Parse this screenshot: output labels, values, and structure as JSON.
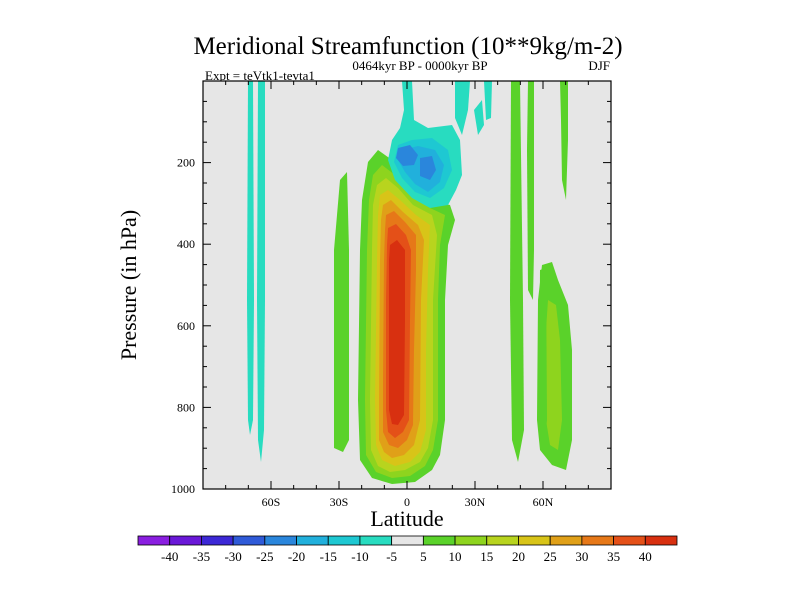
{
  "chart_data": {
    "type": "contour",
    "title": "Meridional Streamfunction (10**9kg/m-2)",
    "subtitle_left": "Expt = teVtk1-tevta1",
    "subtitle_center": "0464kyr BP - 0000kyr BP",
    "subtitle_right": "DJF",
    "xlabel": "Latitude",
    "ylabel": "Pressure (in hPa)",
    "xlim": [
      -90,
      90
    ],
    "ylim": [
      1000,
      0
    ],
    "x_ticks": [
      {
        "value": -60,
        "label": "60S"
      },
      {
        "value": -30,
        "label": "30S"
      },
      {
        "value": 0,
        "label": "0"
      },
      {
        "value": 30,
        "label": "30N"
      },
      {
        "value": 60,
        "label": "60N"
      }
    ],
    "y_ticks": [
      {
        "value": 200,
        "label": "200"
      },
      {
        "value": 400,
        "label": "400"
      },
      {
        "value": 600,
        "label": "600"
      },
      {
        "value": 800,
        "label": "800"
      },
      {
        "value": 1000,
        "label": "1000"
      }
    ],
    "colorbar": {
      "levels": [
        -40,
        -35,
        -30,
        -25,
        -20,
        -15,
        -10,
        -5,
        5,
        10,
        15,
        20,
        25,
        30,
        35,
        40
      ],
      "colors": [
        "#8a1ee0",
        "#6a18d8",
        "#3c28d6",
        "#2f5ad8",
        "#2a86dc",
        "#21b0dc",
        "#1ec8d2",
        "#28dcc0",
        "#e6e6e6",
        "#5ad22a",
        "#8ed41e",
        "#b8d41e",
        "#d8c418",
        "#e0a018",
        "#e67818",
        "#e45018",
        "#d83010"
      ]
    },
    "features": [
      {
        "name": "southern-hadley-cell",
        "value": 40,
        "lat_range": [
          -15,
          8
        ],
        "p_range": [
          180,
          985
        ],
        "note": "positive cell centered near 5S, peak ~40 between 350 and 850 hPa"
      },
      {
        "name": "upper-negative-cell",
        "value": -25,
        "lat_range": [
          -5,
          15
        ],
        "p_range": [
          130,
          240
        ],
        "note": "negative cell near 200 hPa, 0-10N"
      },
      {
        "name": "strip-65S",
        "value": -5,
        "lat_range": [
          -66,
          -62
        ],
        "p_range": [
          0,
          940
        ]
      },
      {
        "name": "strip-70S",
        "value": -5,
        "lat_range": [
          -70,
          -68
        ],
        "p_range": [
          0,
          870
        ]
      },
      {
        "name": "strip-48N",
        "value": 5,
        "lat_range": [
          47,
          51
        ],
        "p_range": [
          0,
          960
        ]
      },
      {
        "name": "strip-60N",
        "value": 10,
        "lat_range": [
          58,
          68
        ],
        "p_range": [
          420,
          970
        ]
      }
    ]
  }
}
